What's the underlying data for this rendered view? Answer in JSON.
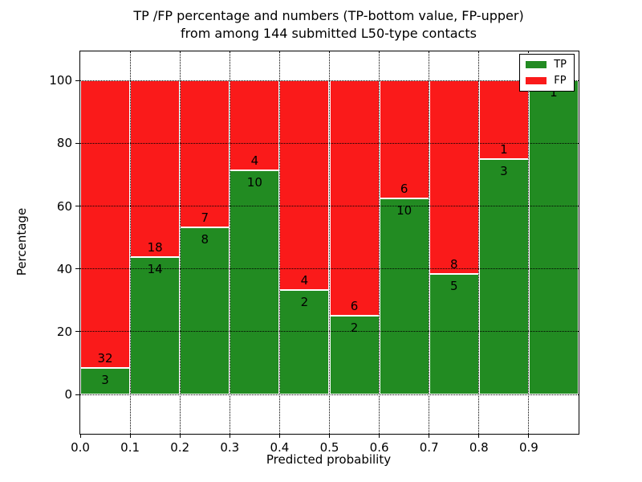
{
  "title": {
    "line1": "TP /FP percentage and numbers (TP-bottom value, FP-upper)",
    "line2": "from among 144 submitted L50-type contacts"
  },
  "chart_data": {
    "type": "bar",
    "stacked": true,
    "title": "TP /FP percentage and numbers (TP-bottom value, FP-upper) from among 144 submitted L50-type contacts",
    "xlabel": "Predicted probability",
    "ylabel": "Percentage",
    "total_contacts": 144,
    "x_tick_labels": [
      "0.0",
      "0.1",
      "0.2",
      "0.3",
      "0.4",
      "0.5",
      "0.6",
      "0.7",
      "0.8",
      "0.9"
    ],
    "y_tick_labels": [
      "0",
      "20",
      "40",
      "60",
      "80",
      "100"
    ],
    "y_ticks": [
      0,
      20,
      40,
      60,
      80,
      100
    ],
    "xlim": [
      0.0,
      1.0
    ],
    "ylim_pct": [
      -12.5,
      109.3
    ],
    "bin_width": 0.1,
    "grid": true,
    "legend_position": "upper right",
    "legend": [
      {
        "label": "TP",
        "color": "#228b22"
      },
      {
        "label": "FP",
        "color": "#fa1a1a"
      }
    ],
    "series_note": "stacked percentage bars; TP count shown below boundary, FP count above boundary",
    "bins": [
      {
        "range": "0.0-0.1",
        "tp": 3,
        "fp": 32
      },
      {
        "range": "0.1-0.2",
        "tp": 14,
        "fp": 18
      },
      {
        "range": "0.2-0.3",
        "tp": 8,
        "fp": 7
      },
      {
        "range": "0.3-0.4",
        "tp": 10,
        "fp": 4
      },
      {
        "range": "0.4-0.5",
        "tp": 2,
        "fp": 4
      },
      {
        "range": "0.5-0.6",
        "tp": 2,
        "fp": 6
      },
      {
        "range": "0.6-0.7",
        "tp": 10,
        "fp": 6
      },
      {
        "range": "0.7-0.8",
        "tp": 5,
        "fp": 8
      },
      {
        "range": "0.8-0.9",
        "tp": 3,
        "fp": 1
      },
      {
        "range": "0.9-1.0",
        "tp": 1,
        "fp": 0
      }
    ],
    "colors": {
      "tp": "#228b22",
      "fp": "#fa1a1a",
      "grid": "#000000",
      "annotation": "#000000"
    }
  }
}
